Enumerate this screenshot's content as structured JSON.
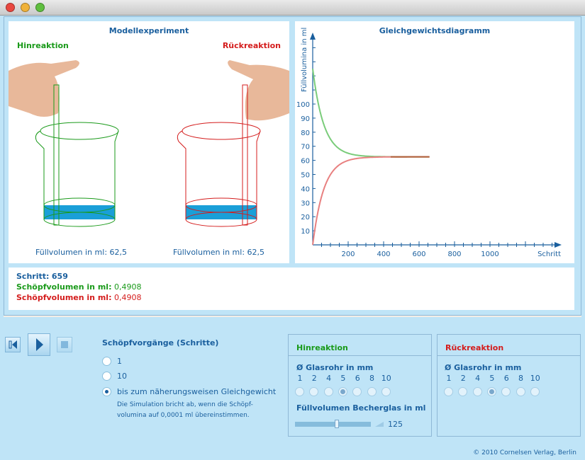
{
  "window": {
    "controls": [
      "close",
      "minimize",
      "zoom"
    ]
  },
  "model": {
    "title": "Modellexperiment",
    "left_label": "Hinreaktion",
    "right_label": "Rückreaktion",
    "left_volume": "Füllvolumen in ml: 62,5",
    "right_volume": "Füllvolumen in ml: 62,5"
  },
  "info": {
    "step_label": "Schritt:",
    "step_value": "659",
    "forward_label": "Schöpfvolumen in ml:",
    "forward_value": "0,4908",
    "backward_label": "Schöpfvolumen in ml:",
    "backward_value": "0,4908"
  },
  "controls": {
    "title": "Schöpfvorgänge (Schritte)",
    "options": [
      "1",
      "10",
      "bis zum näherungsweisen Gleichgewicht"
    ],
    "selected": 2,
    "note_line1": "Die Simulation bricht ab, wenn die Schöpf-",
    "note_line2": "volumina auf 0,0001 ml übereinstimmen."
  },
  "forward": {
    "title": "Hinreaktion",
    "diam_label": "Ø Glasrohr in mm",
    "diameters": [
      "1",
      "2",
      "4",
      "5",
      "6",
      "8",
      "10"
    ],
    "selected": 3,
    "volume_label": "Füllvolumen Becherglas in ml",
    "volume_value": "125",
    "slider_fraction": 0.55
  },
  "backward": {
    "title": "Rückreaktion",
    "diam_label": "Ø Glasrohr in mm",
    "diameters": [
      "1",
      "2",
      "4",
      "5",
      "6",
      "8",
      "10"
    ],
    "selected": 3
  },
  "footer": "© 2010 Cornelsen Verlag, Berlin",
  "colors": {
    "green": "#1a9a1a",
    "red": "#d41c1c",
    "blue": "#1a5f9e",
    "water": "#1a9fd8"
  },
  "chart_data": {
    "type": "line",
    "title": "Gleichgewichtsdiagramm",
    "ylabel": "Füllvolumina in ml",
    "xlabel": "Schritt",
    "yticks": [
      10,
      20,
      30,
      40,
      50,
      60,
      70,
      80,
      90,
      100
    ],
    "xticks": [
      200,
      400,
      600,
      800,
      1000
    ],
    "ylim": [
      0,
      145
    ],
    "xlim": [
      0,
      1400
    ],
    "steps": 659,
    "series": [
      {
        "name": "Hinreaktion",
        "start": 125,
        "end": 62.5,
        "color": "#7acc7a"
      },
      {
        "name": "Rückreaktion",
        "start": 0,
        "end": 62.5,
        "color": "#e88080"
      }
    ],
    "decay_per_step": 0.016
  }
}
